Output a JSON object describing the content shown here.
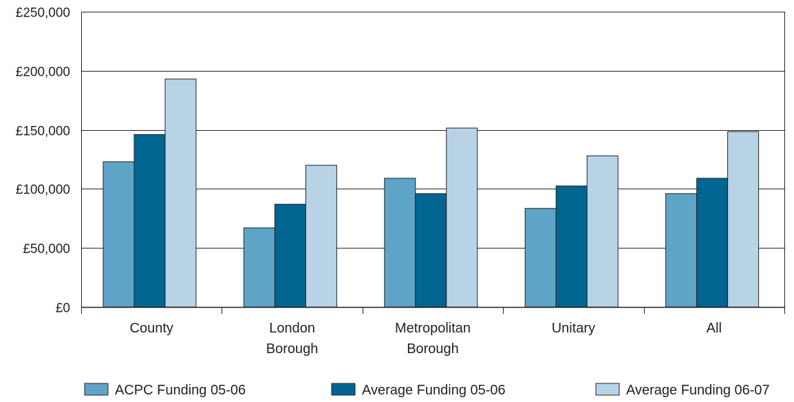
{
  "chart_data": {
    "type": "bar",
    "title": "",
    "xlabel": "",
    "ylabel": "",
    "categories": [
      [
        "County"
      ],
      [
        "London",
        "Borough"
      ],
      [
        "Metropolitan",
        "Borough"
      ],
      [
        "Unitary"
      ],
      [
        "All"
      ]
    ],
    "series": [
      {
        "name": "ACPC Funding 05-06",
        "color": "#5ea4c7",
        "values": [
          123000,
          67000,
          109000,
          83500,
          96000
        ]
      },
      {
        "name": "Average Funding 05-06",
        "color": "#006591",
        "values": [
          146000,
          87000,
          96000,
          102500,
          109000
        ]
      },
      {
        "name": "Average Funding 06-07",
        "color": "#b9d3e6",
        "values": [
          193000,
          120000,
          151500,
          128000,
          148500
        ]
      }
    ],
    "ylim": [
      0,
      250000
    ],
    "yticks": [
      0,
      50000,
      100000,
      150000,
      200000,
      250000
    ],
    "ytick_labels": [
      "£0",
      "£50,000",
      "£100,000",
      "£150,000",
      "£200,000",
      "£250,000"
    ],
    "grid": true,
    "legend_position": "bottom"
  }
}
